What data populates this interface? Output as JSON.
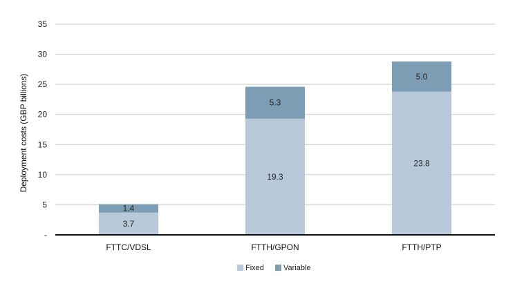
{
  "chart_data": {
    "type": "bar",
    "stacked": true,
    "categories": [
      "FTTC/VDSL",
      "FTTH/GPON",
      "FTTH/PTP"
    ],
    "series": [
      {
        "name": "Fixed",
        "values": [
          3.7,
          19.3,
          23.8
        ],
        "color": "#b8cad9",
        "label_text": [
          "3.7",
          "19.3",
          "23.8"
        ]
      },
      {
        "name": "Variable",
        "values": [
          1.4,
          5.3,
          5.0
        ],
        "color": "#7d9db5",
        "label_text": [
          "1.4",
          "5.3",
          "5.0"
        ]
      }
    ],
    "ylabel": "Deployment costs (GBP billions)",
    "xlabel": "",
    "ylim": [
      0,
      35
    ],
    "yticks": [
      0,
      5,
      10,
      15,
      20,
      25,
      30,
      35
    ],
    "ytick_labels": [
      "-",
      "5",
      "10",
      "15",
      "20",
      "25",
      "30",
      "35"
    ],
    "grid": true,
    "legend_position": "bottom"
  }
}
